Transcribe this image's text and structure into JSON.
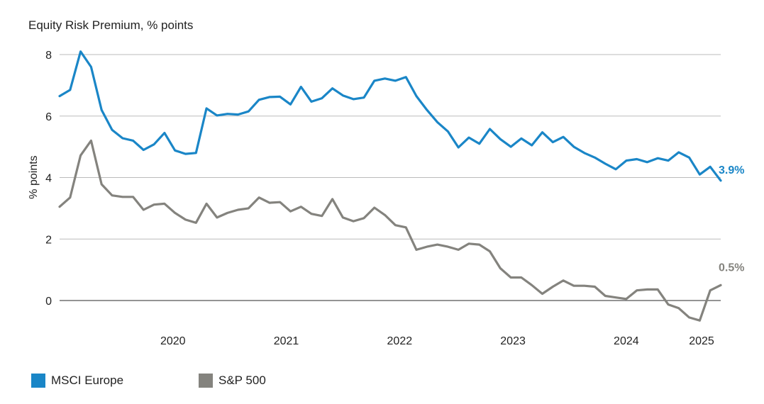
{
  "chart_data": {
    "type": "line",
    "title": "Equity Risk Premium, % points",
    "ylabel": "% points",
    "xlabel": "",
    "ylim": [
      -0.8,
      8.4
    ],
    "yticks": [
      0,
      2,
      4,
      6,
      8
    ],
    "grid": true,
    "legend_position": "bottom-left",
    "x_tick_labels": [
      "2020",
      "2021",
      "2022",
      "2023",
      "2024",
      "2025"
    ],
    "x_start": "2019-07",
    "x_end": "2025-05",
    "series": [
      {
        "name": "MSCI Europe",
        "color": "#1a86c7",
        "end_label": "3.9%",
        "values": [
          6.65,
          6.85,
          8.1,
          7.6,
          6.2,
          5.55,
          5.28,
          5.2,
          4.9,
          5.08,
          5.45,
          4.88,
          4.77,
          4.8,
          6.25,
          6.02,
          6.07,
          6.05,
          6.15,
          6.53,
          6.62,
          6.63,
          6.38,
          6.95,
          6.47,
          6.58,
          6.9,
          6.67,
          6.55,
          6.6,
          7.15,
          7.22,
          7.15,
          7.27,
          6.65,
          6.2,
          5.8,
          5.5,
          4.98,
          5.3,
          5.1,
          5.58,
          5.25,
          5.0,
          5.27,
          5.05,
          5.47,
          5.15,
          5.32,
          5.0,
          4.8,
          4.65,
          4.45,
          4.27,
          4.55,
          4.6,
          4.5,
          4.63,
          4.55,
          4.82,
          4.65,
          4.1,
          4.35,
          3.9
        ]
      },
      {
        "name": "S&P 500",
        "color": "#84837e",
        "end_label": "0.5%",
        "values": [
          3.05,
          3.35,
          4.72,
          5.2,
          3.78,
          3.42,
          3.37,
          3.37,
          2.95,
          3.12,
          3.15,
          2.85,
          2.63,
          2.53,
          3.15,
          2.7,
          2.85,
          2.95,
          3.0,
          3.35,
          3.18,
          3.2,
          2.9,
          3.05,
          2.82,
          2.75,
          3.3,
          2.7,
          2.58,
          2.68,
          3.02,
          2.78,
          2.45,
          2.38,
          1.65,
          1.75,
          1.82,
          1.75,
          1.65,
          1.85,
          1.82,
          1.6,
          1.05,
          0.75,
          0.75,
          0.5,
          0.22,
          0.45,
          0.65,
          0.48,
          0.48,
          0.45,
          0.15,
          0.1,
          0.05,
          0.33,
          0.36,
          0.36,
          -0.13,
          -0.25,
          -0.55,
          -0.65,
          0.33,
          0.5
        ]
      }
    ]
  }
}
